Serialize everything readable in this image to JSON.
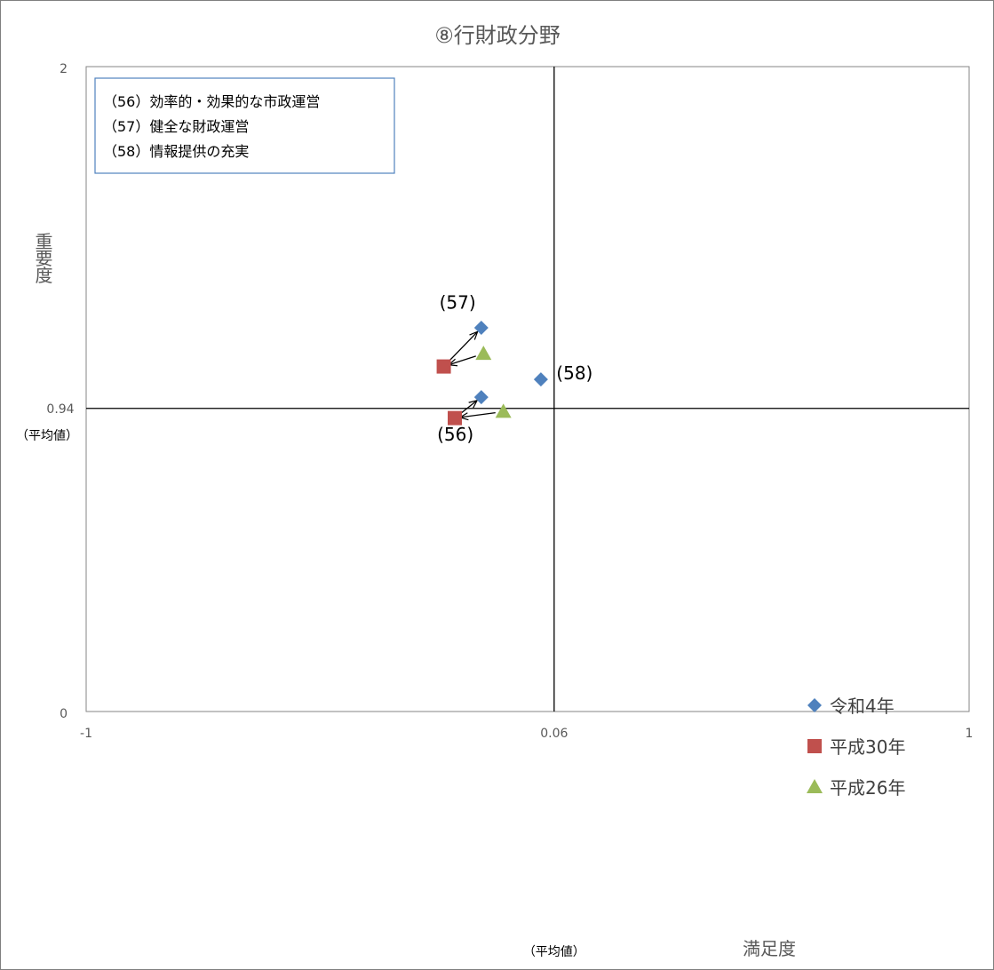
{
  "chart_data": {
    "type": "scatter",
    "title": "⑧行財政分野",
    "xlabel": "満足度",
    "ylabel": "重要度",
    "xlim": [
      -1,
      1
    ],
    "ylim": [
      0,
      2
    ],
    "x_ticks": [
      "-1",
      "1"
    ],
    "y_ticks": [
      "0",
      "2"
    ],
    "reference_lines": {
      "x": 0.06,
      "y": 0.94,
      "x_label": "0.06",
      "y_label": "0.94",
      "avg_label": "（平均値）"
    },
    "notes": [
      "（56）効率的・効果的な市政運営",
      "（57）健全な財政運営",
      "（58）情報提供の充実"
    ],
    "series": [
      {
        "name": "令和4年",
        "marker": "diamond",
        "color": "#4f81bd",
        "points": [
          {
            "id": "(56)",
            "x": -0.105,
            "y": 0.975
          },
          {
            "id": "(57)",
            "x": -0.105,
            "y": 1.19
          },
          {
            "id": "(58)",
            "x": 0.03,
            "y": 1.03
          }
        ]
      },
      {
        "name": "平成30年",
        "marker": "square",
        "color": "#c0504d",
        "points": [
          {
            "id": "(56)",
            "x": -0.165,
            "y": 0.91
          },
          {
            "id": "(57)",
            "x": -0.19,
            "y": 1.07
          }
        ]
      },
      {
        "name": "平成26年",
        "marker": "triangle",
        "color": "#9bbb59",
        "points": [
          {
            "id": "(56)",
            "x": -0.055,
            "y": 0.93
          },
          {
            "id": "(57)",
            "x": -0.1,
            "y": 1.11
          }
        ]
      }
    ],
    "point_labels": [
      {
        "text": "(57)",
        "x": -0.2,
        "y": 1.25
      },
      {
        "text": "(58)",
        "x": 0.065,
        "y": 1.03
      },
      {
        "text": "(56)",
        "x": -0.205,
        "y": 0.84
      }
    ],
    "arrows": [
      {
        "from": {
          "x": -0.055,
          "y": 0.93
        },
        "to": {
          "x": -0.165,
          "y": 0.91
        }
      },
      {
        "from": {
          "x": -0.165,
          "y": 0.91
        },
        "to": {
          "x": -0.105,
          "y": 0.975
        }
      },
      {
        "from": {
          "x": -0.1,
          "y": 1.11
        },
        "to": {
          "x": -0.19,
          "y": 1.07
        }
      },
      {
        "from": {
          "x": -0.19,
          "y": 1.07
        },
        "to": {
          "x": -0.105,
          "y": 1.19
        }
      }
    ],
    "legend": {
      "position": "bottom-right",
      "items": [
        "令和4年",
        "平成30年",
        "平成26年"
      ]
    }
  }
}
